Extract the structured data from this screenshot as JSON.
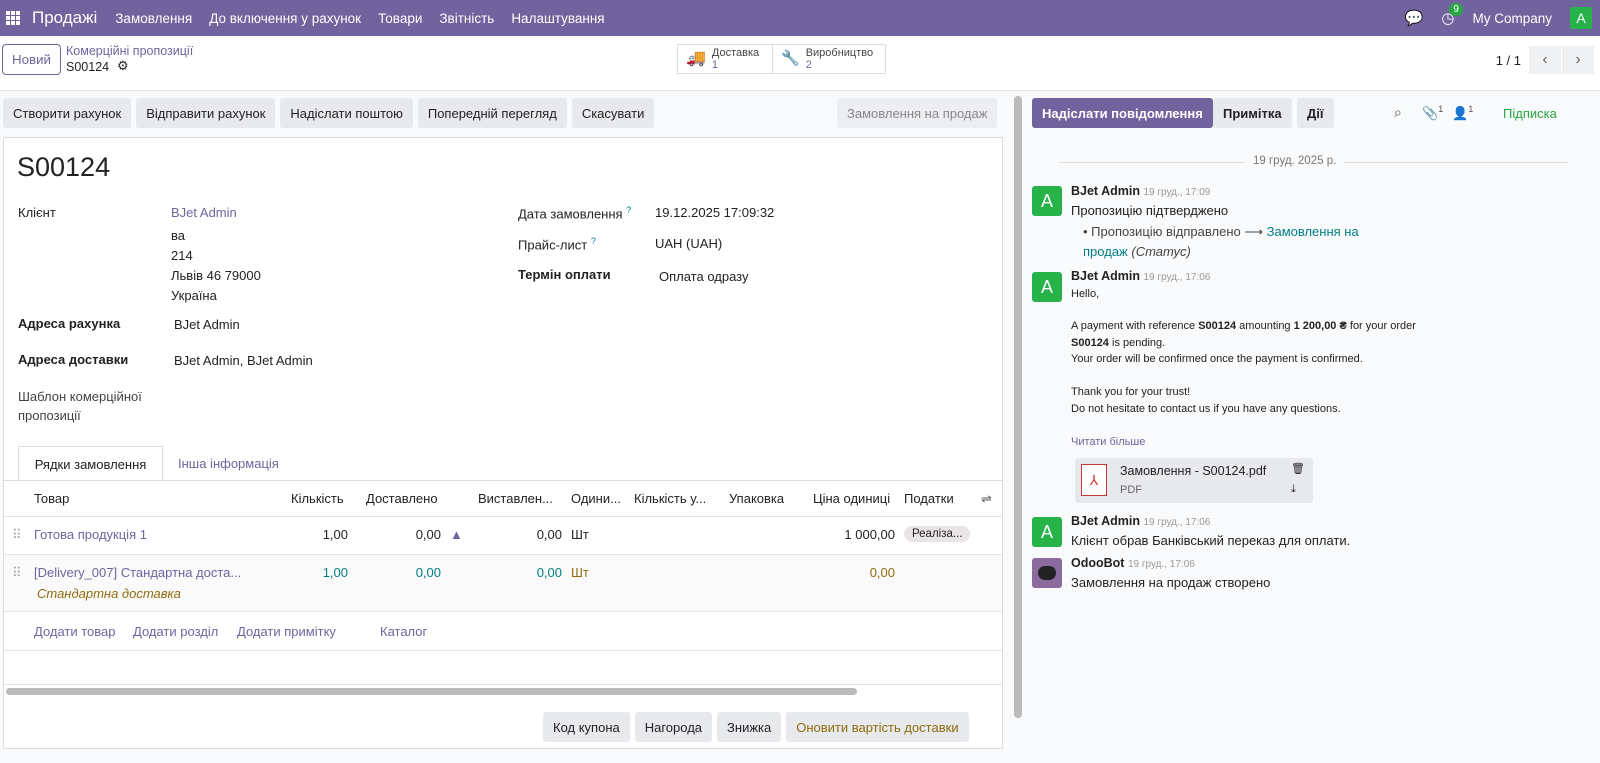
{
  "nav": {
    "app": "Продажі",
    "menu": [
      "Замовлення",
      "До включення у рахунок",
      "Товари",
      "Звітність",
      "Налаштування"
    ],
    "activity_count": "9",
    "company": "My Company",
    "avatar": "A",
    "icons": [
      "apps-grid-icon",
      "chat-icon",
      "clock-icon"
    ]
  },
  "control": {
    "new_label": "Новий",
    "breadcrumb": "Комерційні пропозиції",
    "record": "S00124",
    "smart_buttons": [
      {
        "label": "Доставка",
        "value": "1",
        "icon": "truck-icon"
      },
      {
        "label": "Виробництво",
        "value": "2",
        "icon": "wrench-icon"
      }
    ],
    "pager": "1 / 1"
  },
  "actions": [
    "Створити рахунок",
    "Відправити рахунок",
    "Надіслати поштою",
    "Попередній перегляд",
    "Скасувати"
  ],
  "status": "Замовлення на продаж",
  "form": {
    "title": "S00124",
    "client_label": "Клієнт",
    "client": "BJet Admin",
    "address": [
      "ва",
      "214",
      "Львів 46 79000",
      "Україна"
    ],
    "invoice_addr_label": "Адреса рахунка",
    "invoice_addr": "BJet Admin",
    "delivery_addr_label": "Адреса доставки",
    "delivery_addr": "BJet Admin, BJet Admin",
    "template_label": "Шаблон комерційної пропозиції",
    "date_label": "Дата замовлення",
    "date": "19.12.2025 17:09:32",
    "pricelist_label": "Прайс-лист",
    "pricelist": "UAH (UAH)",
    "terms_label": "Термін оплати",
    "terms": "Оплата одразу",
    "help": "?"
  },
  "tabs": [
    "Рядки замовлення",
    "Інша інформація"
  ],
  "table": {
    "headers": [
      "Товар",
      "Кількість",
      "Доставлено",
      "Виставлен...",
      "Одини...",
      "Кількість у...",
      "Упаковка",
      "Ціна одиниці",
      "Податки"
    ],
    "rows": [
      {
        "product": "Готова продукція 1",
        "qty": "1,00",
        "delivered": "0,00",
        "invoiced": "0,00",
        "uom": "Шт",
        "price": "1 000,00",
        "tax": "Реаліза..."
      },
      {
        "product": "[Delivery_007] Стандартна доста...",
        "qty": "1,00",
        "delivered": "0,00",
        "invoiced": "0,00",
        "uom": "Шт",
        "price": "0,00",
        "note": "Стандартна доставка"
      }
    ],
    "add_links": [
      "Додати товар",
      "Додати розділ",
      "Додати примітку",
      "Каталог"
    ]
  },
  "bottom_buttons": [
    "Код купона",
    "Нагорода",
    "Знижка",
    "Оновити вартість доставки"
  ],
  "chatter": {
    "send": "Надіслати повідомлення",
    "note": "Примітка",
    "actions": "Дії",
    "attachments": "1",
    "followers": "1",
    "follow": "Підписка",
    "date_sep": "19 груд. 2025 р.",
    "messages": [
      {
        "author": "BJet Admin",
        "time": "19 груд., 17:09",
        "text": "Пропозицію підтверджено",
        "change_from": "Пропозицію відправлено",
        "change_to": "Замовлення на продаж",
        "change_field": "(Статус)"
      },
      {
        "author": "BJet Admin",
        "time": "19 груд., 17:06",
        "lines": [
          "Hello,",
          "A payment with reference ",
          "S00124",
          " amounting ",
          "1 200,00 ₴",
          " for your order ",
          "S00124",
          " is pending.",
          "Your order will be confirmed once the payment is confirmed.",
          "Thank you for your trust!",
          "Do not hesitate to contact us if you have any questions."
        ],
        "read_more": "Читати більше",
        "attachment": {
          "name": "Замовлення - S00124.pdf",
          "type": "PDF"
        }
      },
      {
        "author": "BJet Admin",
        "time": "19 груд., 17:06",
        "text": "Клієнт обрав Банківський переказ для оплати."
      },
      {
        "author": "OdooBot",
        "time": "19 груд., 17:06",
        "text": "Замовлення на продаж створено"
      }
    ]
  },
  "colors": {
    "brand": "#71639e",
    "link_blue": "#017e84",
    "green": "#28a745",
    "gold": "#8f6b0b"
  }
}
